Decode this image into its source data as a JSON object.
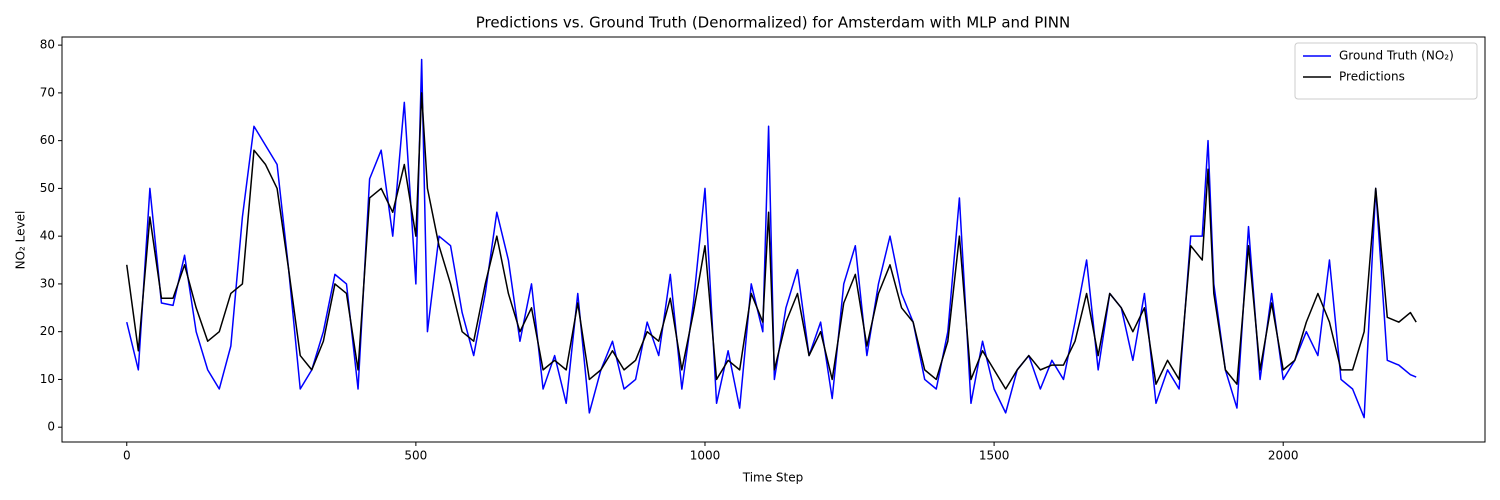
{
  "chart_data": {
    "type": "line",
    "title": "Predictions vs. Ground Truth (Denormalized) for Amsterdam with MLP and PINN",
    "x_label": "Time Step",
    "y_label": "NO₂ Level",
    "xlim": [
      -112,
      2349
    ],
    "ylim": [
      -3.1,
      81.7
    ],
    "xticks": [
      0,
      500,
      1000,
      1500,
      2000
    ],
    "yticks": [
      0,
      10,
      20,
      30,
      40,
      50,
      60,
      70,
      80
    ],
    "legend": "upper right",
    "x": [
      0,
      20,
      40,
      60,
      80,
      100,
      120,
      140,
      160,
      180,
      200,
      220,
      240,
      260,
      280,
      300,
      320,
      340,
      360,
      380,
      400,
      420,
      440,
      460,
      480,
      500,
      510,
      520,
      540,
      560,
      580,
      600,
      620,
      640,
      660,
      680,
      700,
      720,
      740,
      760,
      780,
      800,
      820,
      840,
      860,
      880,
      900,
      920,
      940,
      960,
      980,
      1000,
      1020,
      1040,
      1060,
      1080,
      1100,
      1110,
      1120,
      1140,
      1160,
      1180,
      1200,
      1220,
      1240,
      1260,
      1280,
      1300,
      1320,
      1340,
      1360,
      1380,
      1400,
      1420,
      1440,
      1460,
      1480,
      1500,
      1520,
      1540,
      1560,
      1580,
      1600,
      1620,
      1640,
      1660,
      1680,
      1700,
      1720,
      1740,
      1760,
      1780,
      1800,
      1820,
      1840,
      1860,
      1870,
      1880,
      1900,
      1920,
      1940,
      1960,
      1980,
      2000,
      2020,
      2040,
      2060,
      2080,
      2100,
      2120,
      2140,
      2160,
      2180,
      2200,
      2220,
      2230
    ],
    "series": [
      {
        "name": "Ground Truth (NO₂)",
        "color": "#0000ff",
        "values": [
          22,
          12,
          50,
          26,
          25.5,
          36,
          20,
          12,
          8,
          17,
          44,
          63,
          59,
          55,
          33,
          8,
          12,
          20,
          32,
          30,
          8,
          52,
          58,
          40,
          68,
          30,
          77,
          20,
          40,
          38,
          24,
          15,
          28,
          45,
          35,
          18,
          30,
          8,
          15,
          5,
          28,
          3,
          12,
          18,
          8,
          10,
          22,
          15,
          32,
          8,
          26,
          50,
          5,
          16,
          4,
          30,
          20,
          63,
          10,
          25,
          33,
          15,
          22,
          6,
          30,
          38,
          15,
          30,
          40,
          28,
          22,
          10,
          8,
          20,
          48,
          5,
          18,
          8,
          3,
          12,
          15,
          8,
          14,
          10,
          22,
          35,
          12,
          28,
          25,
          14,
          28,
          5,
          12,
          8,
          40,
          40,
          60,
          30,
          12,
          4,
          42,
          10,
          28,
          10,
          14,
          20,
          15,
          35,
          10,
          8,
          2,
          50,
          14,
          13,
          11,
          10.5
        ]
      },
      {
        "name": "Predictions",
        "color": "#000000",
        "values": [
          34,
          16,
          44,
          27,
          27,
          34,
          25,
          18,
          20,
          28,
          30,
          58,
          55,
          50,
          33,
          15,
          12,
          18,
          30,
          28,
          12,
          48,
          50,
          45,
          55,
          40,
          70,
          50,
          38,
          30,
          20,
          18,
          30,
          40,
          28,
          20,
          25,
          12,
          14,
          12,
          26,
          10,
          12,
          16,
          12,
          14,
          20,
          18,
          27,
          12,
          24,
          38,
          10,
          14,
          12,
          28,
          22,
          45,
          12,
          22,
          28,
          15,
          20,
          10,
          26,
          32,
          17,
          28,
          34,
          25,
          22,
          12,
          10,
          18,
          40,
          10,
          16,
          12,
          8,
          12,
          15,
          12,
          13,
          13,
          18,
          28,
          15,
          28,
          25,
          20,
          25,
          9,
          14,
          10,
          38,
          35,
          54,
          28,
          12,
          9,
          38,
          12,
          26,
          12,
          14,
          22,
          28,
          22,
          12,
          12,
          20,
          50,
          23,
          22,
          24,
          22
        ]
      }
    ]
  }
}
